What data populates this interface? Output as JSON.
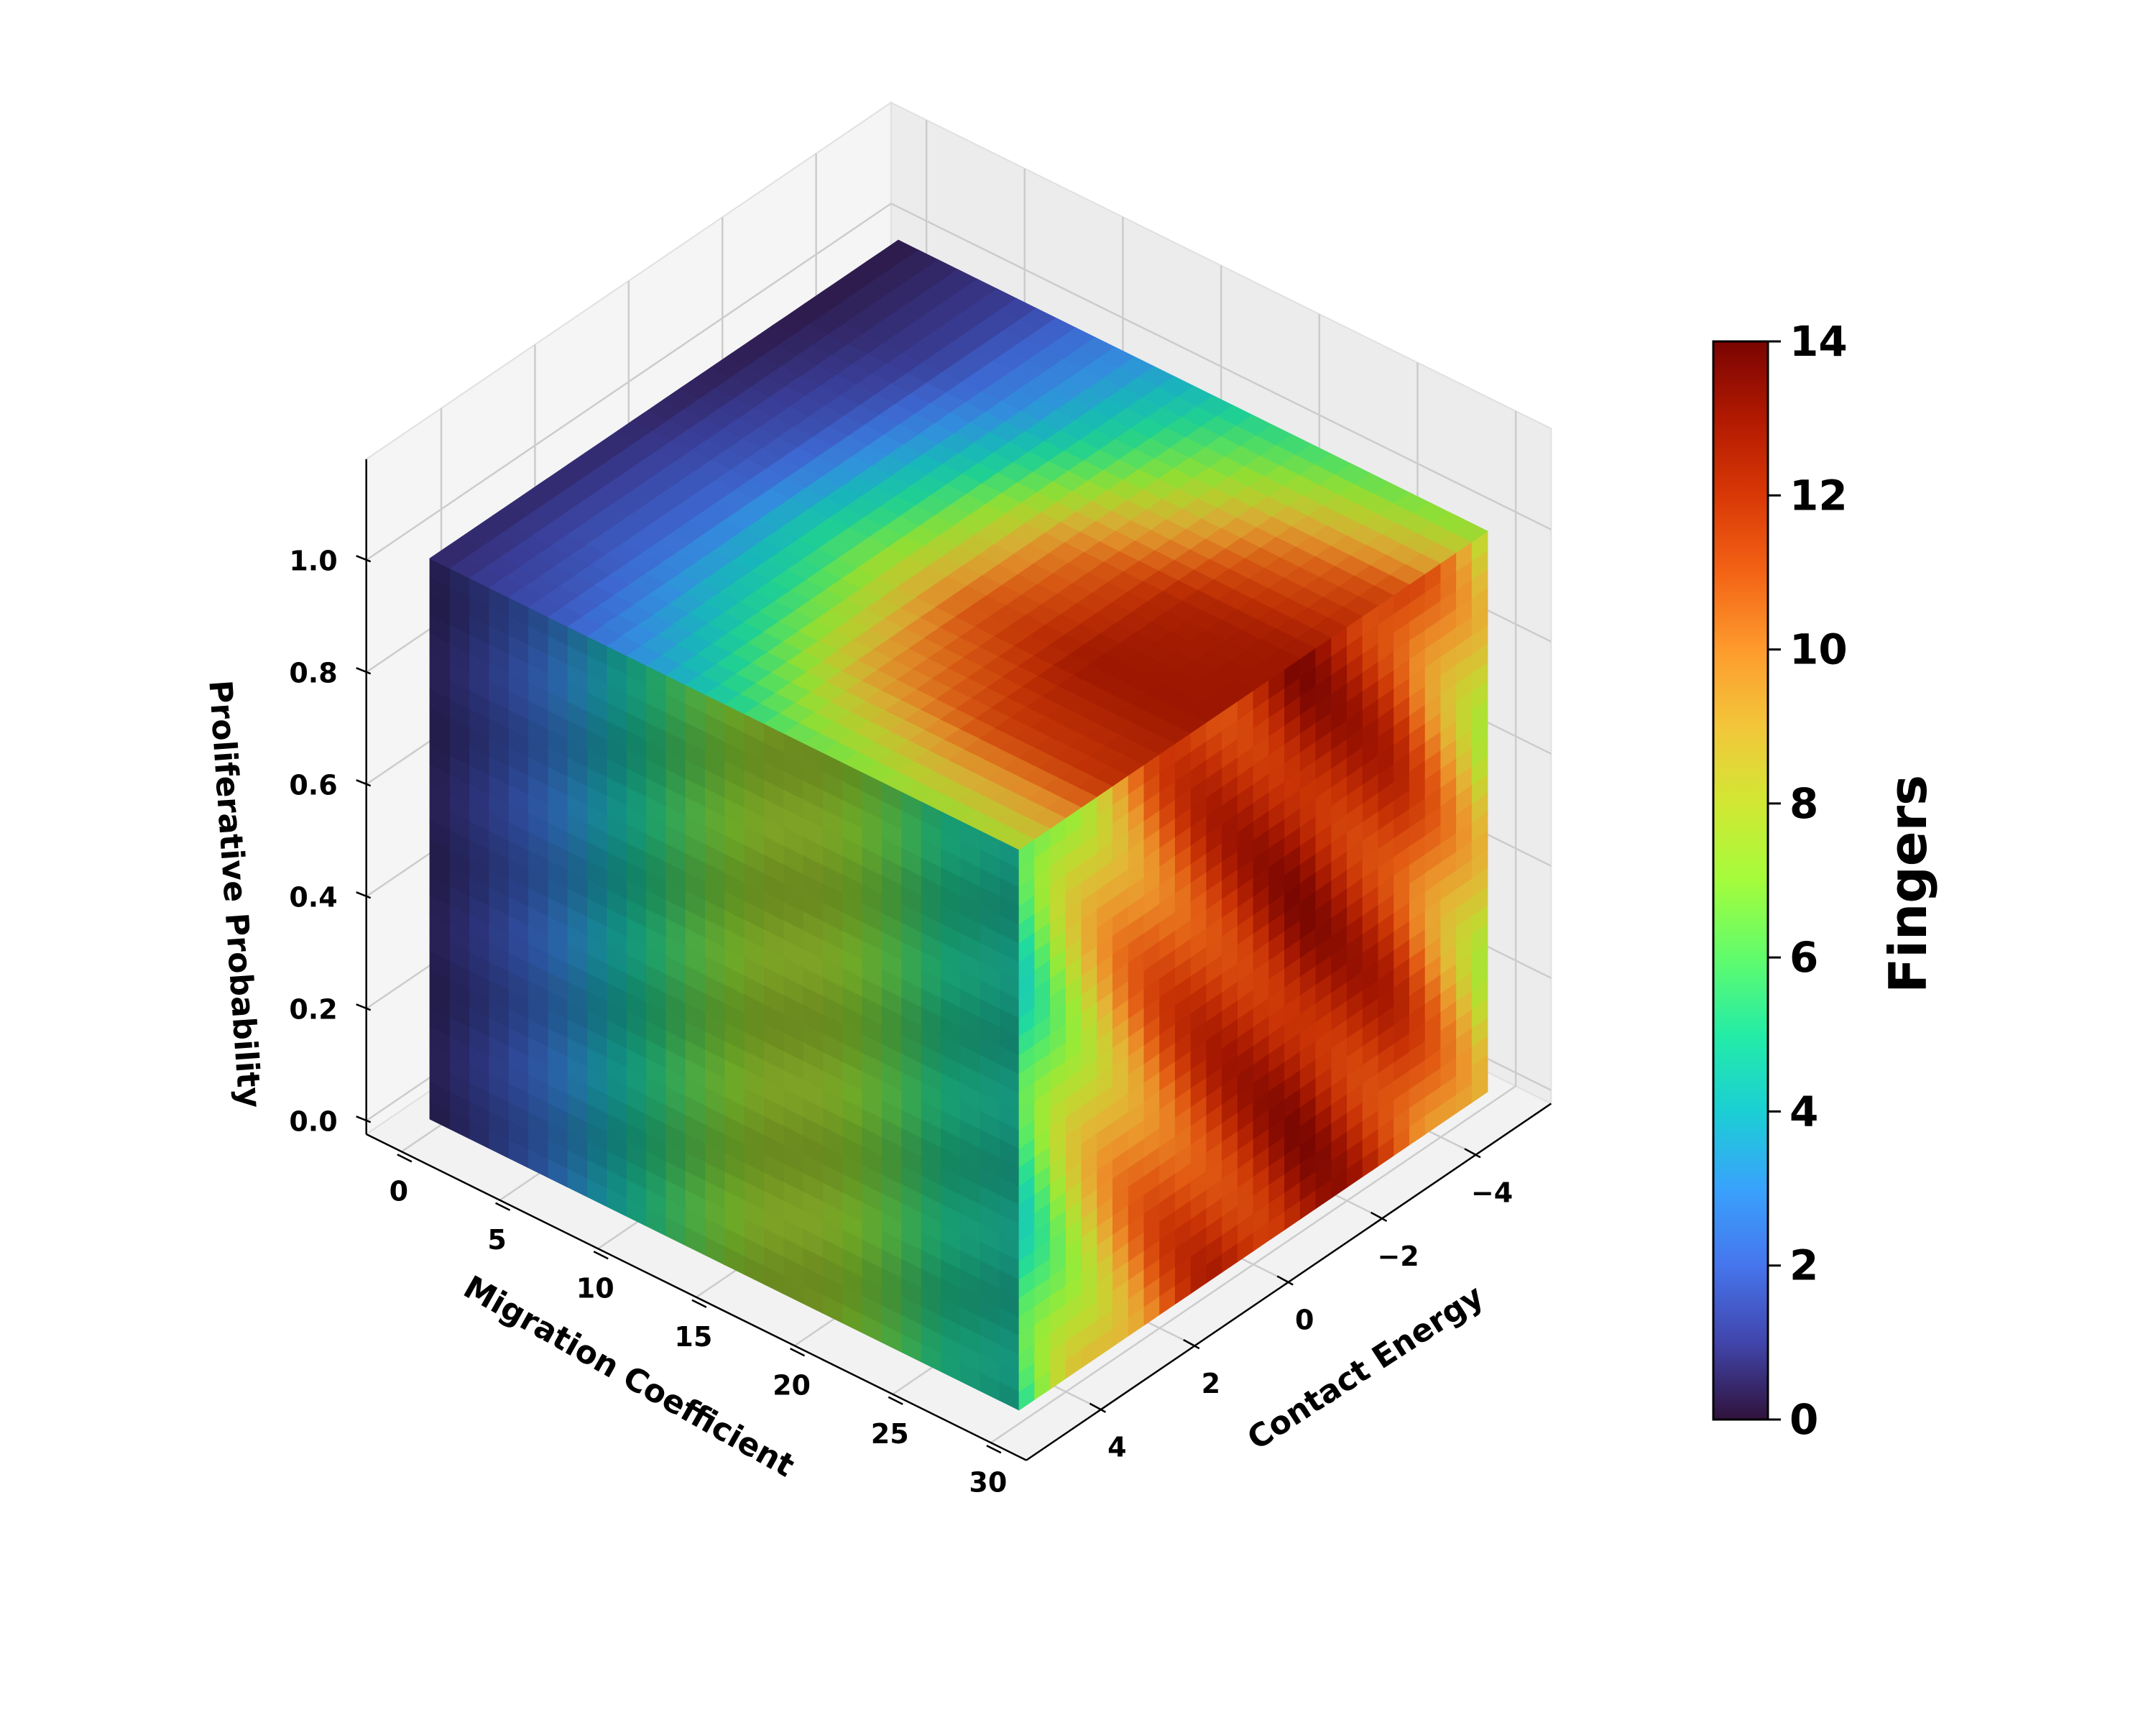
{
  "chart_data": {
    "type": "heatmap",
    "subtype": "3d-voxel-cube-surface-heatmap",
    "xlabel": "Migration Coefficient",
    "ylabel": "Contact Energy",
    "zlabel": "Proliferative Probability",
    "colorbar_label": "Fingers",
    "colormap": "turbo",
    "xlim": [
      0,
      30
    ],
    "ylim": [
      5,
      -5
    ],
    "zlim": [
      0,
      1
    ],
    "clim": [
      0,
      14
    ],
    "x_ticks": [
      "0",
      "5",
      "10",
      "15",
      "20",
      "25",
      "30"
    ],
    "y_ticks": [
      "4",
      "2",
      "0",
      "−2",
      "−4"
    ],
    "z_ticks": [
      "0.0",
      "0.2",
      "0.4",
      "0.6",
      "0.8",
      "1.0"
    ],
    "colorbar_ticks": [
      "0",
      "2",
      "4",
      "6",
      "8",
      "10",
      "12",
      "14"
    ],
    "grid": true,
    "faces": {
      "front": {
        "description_axis": "Migration Coefficient (x) vs Proliferative Probability (z) at Contact Energy = 5",
        "x": [
          0,
          2,
          5,
          8,
          11,
          14,
          17,
          20,
          23,
          26,
          30
        ],
        "fingers_vs_x": [
          0.5,
          1,
          2,
          3.5,
          5,
          6.5,
          7.5,
          7.5,
          6.5,
          5,
          4.5
        ]
      },
      "right": {
        "description_axis": "Contact Energy (y) vs Proliferative Probability (z) at Migration Coefficient = 30",
        "y": [
          5,
          4,
          3,
          2,
          1,
          0,
          -1,
          -2,
          -3,
          -4,
          -5
        ],
        "fingers_vs_y": [
          5,
          7.5,
          9.5,
          11,
          12,
          12.5,
          13,
          12.5,
          12,
          10,
          8
        ]
      },
      "top": {
        "description_axis": "Migration Coefficient (x) vs Contact Energy (y) at Proliferative Probability = 1.0",
        "x": [
          0,
          6,
          12,
          18,
          24,
          30
        ],
        "y": [
          5,
          3,
          1,
          -1,
          -3,
          -5
        ],
        "fingers_grid_rows_x_cols_y": [
          [
            0.5,
            0.5,
            0.5,
            0.3,
            0.2,
            0.2
          ],
          [
            1.5,
            2,
            2,
            1.5,
            1,
            1
          ],
          [
            3.5,
            5,
            6,
            5,
            3.5,
            3
          ],
          [
            6,
            9.5,
            11,
            10,
            7,
            5
          ],
          [
            7,
            11.5,
            13,
            12.5,
            10,
            6
          ],
          [
            7.5,
            12,
            13,
            13,
            11.5,
            7
          ]
        ]
      }
    }
  }
}
